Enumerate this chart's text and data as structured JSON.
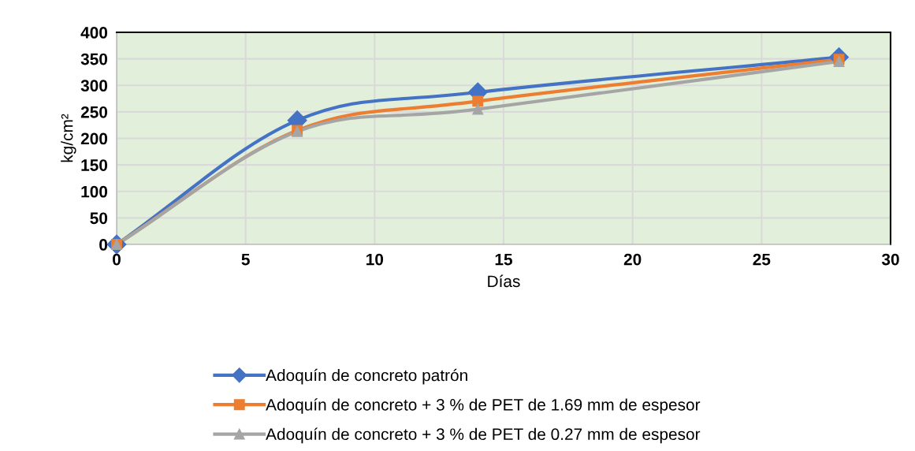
{
  "chart_data": {
    "type": "line",
    "xlabel": "Días",
    "ylabel": "kg/cm²",
    "x": [
      0,
      7,
      14,
      28
    ],
    "series": [
      {
        "name": "Adoquín de concreto patrón",
        "color": "#4472c4",
        "marker": "diamond",
        "values": [
          0,
          234,
          287,
          353
        ]
      },
      {
        "name": "Adoquín de concreto + 3 % de PET de 1.69 mm de espesor",
        "color": "#ed7d31",
        "marker": "square",
        "values": [
          0,
          215,
          270,
          349
        ]
      },
      {
        "name": "Adoquín de concreto + 3 % de PET de 0.27 mm de espesor",
        "color": "#a5a5a5",
        "marker": "triangle",
        "values": [
          0,
          213,
          255,
          345
        ]
      }
    ],
    "xlim": [
      0,
      30
    ],
    "xticks": [
      0,
      5,
      10,
      15,
      20,
      25,
      30
    ],
    "ylim": [
      0,
      400
    ],
    "yticks": [
      0,
      50,
      100,
      150,
      200,
      250,
      300,
      350,
      400
    ],
    "grid": true,
    "legend": "bottom"
  }
}
